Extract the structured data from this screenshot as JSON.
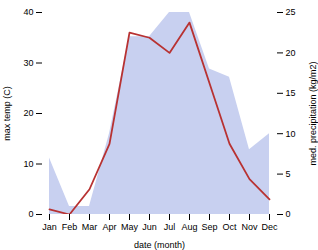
{
  "chart_data": {
    "type": "line",
    "xlabel": "date (month)",
    "ylabel": "max temp (C)",
    "y2label": "med. precipitation (kg/m2)",
    "categories": [
      "Jan",
      "Feb",
      "Mar",
      "Apr",
      "May",
      "Jun",
      "Jul",
      "Aug",
      "Sep",
      "Oct",
      "Nov",
      "Dec"
    ],
    "series": [
      {
        "type": "area",
        "axis": "y2",
        "color": "#c8d0f0",
        "values": [
          7.0,
          1.0,
          1.0,
          10.0,
          22.0,
          22.0,
          25.0,
          25.0,
          18.0,
          17.0,
          8.0,
          10.0
        ]
      },
      {
        "type": "line",
        "color": "#b83232",
        "values": [
          1.0,
          0.0,
          5.0,
          14.0,
          36.0,
          35.0,
          32.0,
          38.0,
          26.0,
          14.0,
          7.0,
          3.0
        ]
      }
    ],
    "ylim": [
      0,
      40
    ],
    "yticks": [
      0,
      10,
      20,
      30,
      40
    ],
    "y2lim": [
      0,
      25
    ],
    "y2ticks": [
      0,
      5,
      10,
      15,
      20,
      25
    ],
    "grid": false
  }
}
